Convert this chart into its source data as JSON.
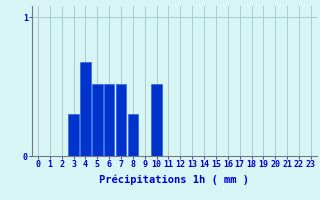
{
  "values": [
    0,
    0,
    0,
    0.3,
    0.68,
    0.52,
    0.52,
    0.52,
    0.3,
    0,
    0.52,
    0,
    0,
    0,
    0,
    0,
    0,
    0,
    0,
    0,
    0,
    0,
    0,
    0
  ],
  "bar_color": "#0033cc",
  "bar_edge_color": "#2255ee",
  "background_color": "#d8f5f5",
  "grid_color": "#aacccc",
  "axis_color": "#777777",
  "xlabel": "Précipitations 1h ( mm )",
  "ytick_labels": [
    "0",
    "1"
  ],
  "ytick_values": [
    0,
    1
  ],
  "ylim": [
    0,
    1.08
  ],
  "xlim": [
    -0.5,
    23.5
  ],
  "xlabel_color": "#0000cc",
  "tick_color": "#0000cc",
  "xlabel_fontsize": 7.5,
  "tick_fontsize": 6.0,
  "bar_width": 0.9
}
